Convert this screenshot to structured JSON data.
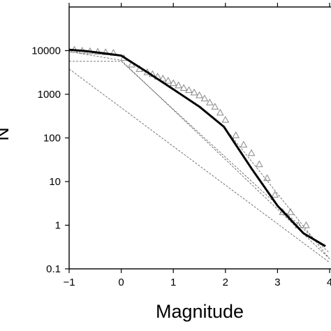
{
  "chart_data": {
    "type": "line",
    "title": "",
    "xlabel": "Magnitude",
    "ylabel": "N",
    "xlim": [
      -1,
      4
    ],
    "ylim": [
      0.1,
      100000
    ],
    "y_scale": "log",
    "grid": false,
    "legend": "none",
    "x_ticks": [
      {
        "value": -1,
        "label": "−1"
      },
      {
        "value": 0,
        "label": "0"
      },
      {
        "value": 1,
        "label": "1"
      },
      {
        "value": 2,
        "label": "2"
      },
      {
        "value": 3,
        "label": "3"
      },
      {
        "value": 4,
        "label": "4"
      }
    ],
    "y_ticks": [
      {
        "value": 0.1,
        "label": "0.1"
      },
      {
        "value": 1,
        "label": "1"
      },
      {
        "value": 10,
        "label": "10"
      },
      {
        "value": 100,
        "label": "100"
      },
      {
        "value": 1000,
        "label": "1000"
      },
      {
        "value": 10000,
        "label": "10000"
      }
    ],
    "series": [
      {
        "style": "solid-bold",
        "color": "#000000",
        "x": [
          -1.0,
          -0.7,
          -0.3,
          0.0,
          0.5,
          1.0,
          1.5,
          1.97,
          2.5,
          3.0,
          3.5,
          3.92
        ],
        "y": [
          10500,
          9800,
          8600,
          7700,
          3200,
          1300,
          520,
          180,
          20,
          2.8,
          0.65,
          0.33
        ]
      },
      {
        "style": "triangles",
        "color": "#888888",
        "x": [
          -0.9,
          -0.75,
          -0.6,
          -0.45,
          -0.3,
          -0.15,
          0.05,
          0.2,
          0.35,
          0.5,
          0.6,
          0.7,
          0.8,
          0.9,
          1.0,
          1.1,
          1.2,
          1.3,
          1.4,
          1.5,
          1.6,
          1.7,
          1.8,
          1.9,
          2.0,
          2.2,
          2.35,
          2.5,
          2.65,
          2.8,
          2.95,
          3.1,
          3.25,
          3.4,
          3.55
        ],
        "y": [
          10500,
          10000,
          9700,
          9500,
          9200,
          8900,
          6800,
          4800,
          3800,
          3200,
          2900,
          2550,
          2300,
          2050,
          1800,
          1600,
          1400,
          1250,
          1100,
          950,
          800,
          650,
          520,
          380,
          260,
          115,
          70,
          45,
          25,
          12,
          5,
          2,
          2,
          1,
          1
        ]
      },
      {
        "style": "dashed",
        "color": "#666666",
        "x": [
          -1.0,
          0.0,
          4.0
        ],
        "y": [
          9500,
          6000,
          0.17
        ]
      },
      {
        "style": "dashed",
        "color": "#666666",
        "x": [
          -1.0,
          0.0,
          4.0
        ],
        "y": [
          5700,
          5700,
          0.23
        ]
      },
      {
        "style": "dashed",
        "color": "#666666",
        "x": [
          -1.0,
          4.0
        ],
        "y": [
          3800,
          0.14
        ]
      },
      {
        "style": "dashed",
        "color": "#666666",
        "x": [
          1.97,
          4.0
        ],
        "y": [
          180,
          0.17
        ]
      }
    ]
  }
}
